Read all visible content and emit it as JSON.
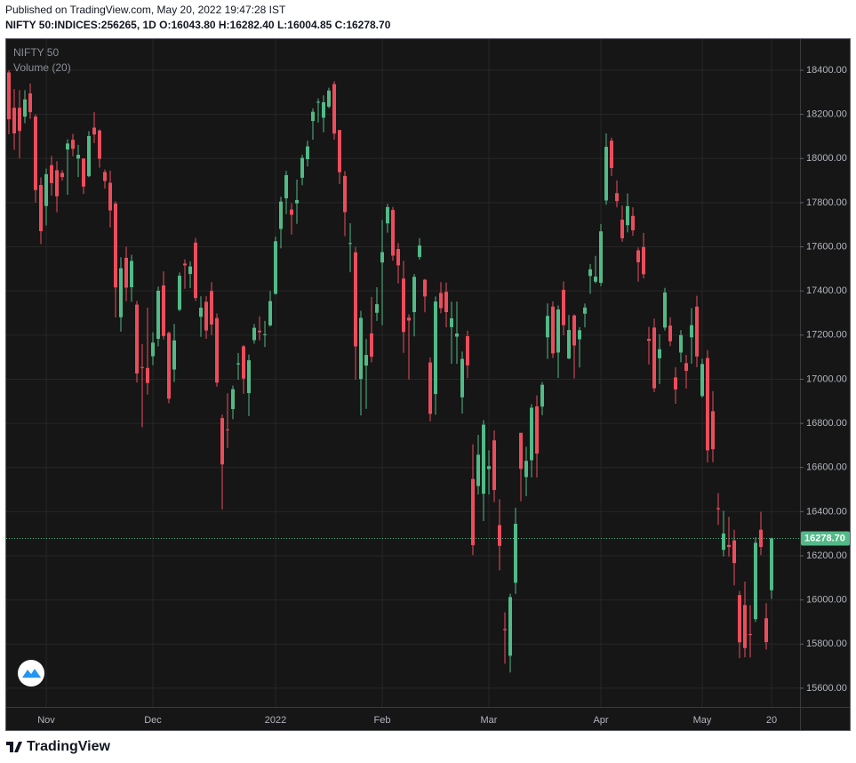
{
  "chart_data": {
    "type": "candlestick",
    "published": "Published on TradingView.com, May 20, 2022 19:47:28 IST",
    "symbol_line": "NIFTY 50:INDICES:256265, 1D  O:16043.80 H:16282.40 L:16004.85 C:16278.70",
    "title": "NIFTY 50",
    "indicator": "Volume (20)",
    "brand": "TradingView",
    "up_color": "#53b987",
    "down_color": "#eb4d5c",
    "grid": true,
    "categories": [
      null,
      null,
      null,
      null,
      null,
      null,
      null,
      "Nov",
      null,
      null,
      null,
      null,
      null,
      null,
      null,
      null,
      null,
      null,
      null,
      null,
      null,
      null,
      null,
      null,
      null,
      null,
      null,
      "Dec",
      null,
      null,
      null,
      null,
      null,
      null,
      null,
      null,
      null,
      null,
      null,
      null,
      null,
      null,
      null,
      null,
      null,
      null,
      null,
      null,
      null,
      null,
      "2022",
      null,
      null,
      null,
      null,
      null,
      null,
      null,
      null,
      null,
      null,
      null,
      null,
      null,
      null,
      null,
      null,
      null,
      null,
      null,
      "Feb",
      null,
      null,
      null,
      null,
      null,
      null,
      null,
      null,
      null,
      null,
      null,
      null,
      null,
      null,
      null,
      null,
      null,
      null,
      null,
      "Mar",
      null,
      null,
      null,
      null,
      null,
      null,
      null,
      null,
      null,
      null,
      null,
      null,
      null,
      null,
      null,
      null,
      null,
      null,
      null,
      null,
      "Apr",
      null,
      null,
      null,
      null,
      null,
      null,
      null,
      null,
      null,
      null,
      null,
      null,
      null,
      null,
      null,
      null,
      null,
      null,
      "May",
      null,
      null,
      null,
      null,
      null,
      null,
      null,
      null,
      null,
      null,
      null,
      null,
      "20"
    ],
    "open": [
      18390,
      18230,
      18230,
      18190,
      18295,
      18190,
      17880,
      17785,
      17970,
      17947,
      17935,
      18041,
      18085,
      18000,
      18000,
      17920,
      18140,
      18127,
      17939,
      17890,
      17796,
      17281,
      17550,
      17417,
      17338,
      17055,
      17051,
      17104,
      17183,
      17425,
      17210,
      17044,
      17315,
      17524,
      17477,
      17619,
      17283,
      17351,
      17400,
      17277,
      16824,
      16773,
      16865,
      17067,
      17149,
      16937,
      17177,
      17220,
      17201,
      17244,
      17387,
      17681,
      17820,
      17769,
      17797,
      17913,
      17997,
      18170,
      18257,
      18185,
      18235,
      18337,
      18129,
      17921,
      17614,
      17575,
      17001,
      17062,
      17208,
      17301,
      17529,
      17706,
      17767,
      17590,
      17456,
      17279,
      17304,
      17554,
      17451,
      17076,
      16933,
      17391,
      17396,
      17236,
      17193,
      16918,
      17195,
      16548,
      16516,
      16481,
      16593,
      16723,
      16339,
      15868,
      15747,
      16078,
      16757,
      16557,
      16633,
      16877,
      16876,
      17190,
      17329,
      17121,
      17405,
      17094,
      17289,
      17181,
      17297,
      17468,
      17442,
      17437,
      17810,
      18081,
      17843,
      17723,
      17698,
      17740,
      17584,
      17599,
      17183,
      17234,
      17095,
      17234,
      17243,
      17008,
      17121,
      17073,
      17190,
      17329,
      16924,
      17096,
      16855,
      16416,
      16227,
      16249,
      16270,
      16022,
      15977,
      15845,
      15913,
      16318,
      15917,
      16043.8
    ],
    "high": [
      18400,
      18315,
      18310,
      18310,
      18340,
      18200,
      17915,
      17954,
      18012,
      17988,
      17947,
      18087,
      18112,
      18062,
      18000,
      18124,
      18210,
      18132,
      17950,
      17945,
      17806,
      17553,
      17600,
      17564,
      17355,
      17160,
      17324,
      17213,
      17420,
      17489,
      17216,
      17251,
      17484,
      17543,
      17534,
      17640,
      17376,
      17376,
      17440,
      17298,
      16840,
      16936,
      16971,
      17119,
      17155,
      17112,
      17250,
      17285,
      17264,
      17400,
      17646,
      17827,
      17944,
      17797,
      17905,
      18017,
      18081,
      18227,
      18272,
      18286,
      18321,
      18350,
      18130,
      17943,
      17707,
      17599,
      17310,
      17182,
      17373,
      17417,
      17722,
      17795,
      17781,
      17617,
      17536,
      17294,
      17477,
      17639,
      17454,
      17099,
      17375,
      17440,
      17438,
      17351,
      17352,
      17125,
      17220,
      16705,
      16748,
      16815,
      16678,
      16768,
      16456,
      15944,
      16028,
      16418,
      16757,
      16694,
      16887,
      16927,
      16987,
      17344,
      17353,
      17334,
      17443,
      17291,
      17294,
      17236,
      17343,
      17522,
      17559,
      17703,
      18114,
      18095,
      17901,
      17787,
      17842,
      17779,
      17597,
      17663,
      17237,
      17275,
      17204,
      17414,
      17281,
      17054,
      17223,
      17110,
      17322,
      17378,
      17093,
      17132,
      16946,
      16484,
      16404,
      16377,
      16318,
      16041,
      16083,
      15977,
      16284,
      16399,
      15985,
      16282.4
    ],
    "low": [
      18110,
      18040,
      18000,
      18160,
      18180,
      17800,
      17613,
      17697,
      17832,
      17757,
      17900,
      17836,
      18010,
      17916,
      17840,
      17915,
      18070,
      17959,
      17864,
      17688,
      17280,
      17216,
      17354,
      17351,
      16985,
      16782,
      16931,
      17064,
      17149,
      17180,
      16891,
      16987,
      17308,
      17410,
      17413,
      17355,
      17192,
      17183,
      17200,
      16966,
      16410,
      16688,
      16819,
      16998,
      16934,
      16833,
      17161,
      17176,
      17146,
      17238,
      17383,
      17593,
      17748,
      17655,
      17704,
      17879,
      17964,
      18085,
      18163,
      18119,
      18228,
      18085,
      17884,
      17648,
      17485,
      16998,
      16836,
      16866,
      17077,
      17264,
      17245,
      17664,
      17537,
      17434,
      17119,
      16999,
      17194,
      17542,
      17303,
      16810,
      16839,
      17299,
      17235,
      17070,
      17070,
      16844,
      17005,
      16203,
      16478,
      16357,
      16478,
      16443,
      16134,
      15711,
      15671,
      16027,
      16447,
      16470,
      16555,
      16555,
      16837,
      17092,
      17096,
      17006,
      17200,
      17091,
      17004,
      17053,
      17235,
      17387,
      17435,
      17422,
      17791,
      17921,
      17779,
      17623,
      17665,
      17650,
      17442,
      17457,
      17067,
      16942,
      16978,
      17221,
      17150,
      16889,
      17077,
      16958,
      17071,
      17054,
      16917,
      16623,
      16624,
      16340,
      16197,
      16197,
      16066,
      15736,
      15740,
      15739,
      15900,
      16203,
      15775,
      16004.85
    ],
    "close": [
      18178,
      18114,
      18125,
      18268,
      18210,
      17857,
      17671,
      17929,
      17889,
      17829,
      17916,
      18068,
      18044,
      18017,
      17873,
      18102,
      18109,
      17999,
      17898,
      17765,
      17416,
      17503,
      17415,
      17536,
      17026,
      17053,
      16983,
      17166,
      17401,
      17196,
      16912,
      17176,
      17469,
      17516,
      17511,
      17368,
      17324,
      17221,
      17248,
      16985,
      16614,
      16770,
      16955,
      17072,
      17003,
      17086,
      17233,
      17213,
      17204,
      17354,
      17625,
      17805,
      17925,
      17745,
      17812,
      18003,
      18055,
      18212,
      18257,
      18255,
      18308,
      18113,
      17938,
      17757,
      17617,
      17149,
      17278,
      17110,
      17102,
      17340,
      17576,
      17780,
      17560,
      17516,
      17214,
      17266,
      17464,
      17606,
      17375,
      16843,
      17352,
      17322,
      17304,
      17276,
      17207,
      17092,
      17063,
      16248,
      16658,
      16794,
      16606,
      16498,
      16245,
      15863,
      16013,
      16345,
      16594,
      16630,
      16871,
      16663,
      16975,
      17287,
      17117,
      17316,
      17245,
      17223,
      17153,
      17222,
      17325,
      17498,
      17465,
      17670,
      18053,
      17957,
      17807,
      17639,
      17784,
      17675,
      17530,
      17476,
      17174,
      16959,
      17136,
      17393,
      17172,
      16954,
      17200,
      17038,
      17245,
      17103,
      17069,
      16678,
      16683,
      16411,
      16301,
      16240,
      16167,
      15808,
      15782,
      15842,
      16259,
      16240,
      15809,
      16278.7
    ],
    "last_price": {
      "value": 16278.7,
      "label": "16278.70"
    },
    "ylim": [
      15515,
      18541
    ],
    "yticks": [
      {
        "value": 15600,
        "label": "15600.00"
      },
      {
        "value": 15800,
        "label": "15800.00"
      },
      {
        "value": 16000,
        "label": "16000.00"
      },
      {
        "value": 16200,
        "label": "16200.00"
      },
      {
        "value": 16400,
        "label": "16400.00"
      },
      {
        "value": 16600,
        "label": "16600.00"
      },
      {
        "value": 16800,
        "label": "16800.00"
      },
      {
        "value": 17000,
        "label": "17000.00"
      },
      {
        "value": 17200,
        "label": "17200.00"
      },
      {
        "value": 17400,
        "label": "17400.00"
      },
      {
        "value": 17600,
        "label": "17600.00"
      },
      {
        "value": 17800,
        "label": "17800.00"
      },
      {
        "value": 18000,
        "label": "18000.00"
      },
      {
        "value": 18200,
        "label": "18200.00"
      },
      {
        "value": 18400,
        "label": "18400.00"
      }
    ]
  }
}
